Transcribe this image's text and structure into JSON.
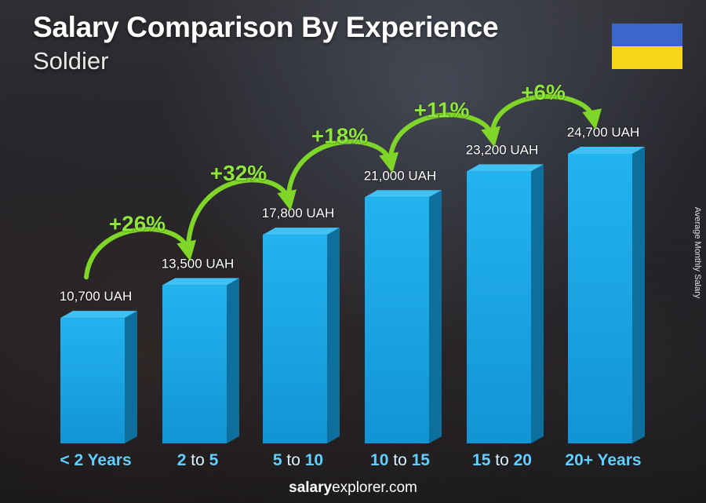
{
  "title": "Salary Comparison By Experience",
  "subtitle": "Soldier",
  "ylabel": "Average Monthly Salary",
  "flag_colors": {
    "top": "#3a67c9",
    "bottom": "#f7d51a"
  },
  "bar_color": "#1aaae8",
  "arrow_color": "#7fd628",
  "footer": {
    "bold": "salary",
    "rest": "explorer.com"
  },
  "chart_data": {
    "type": "bar",
    "categories": [
      {
        "a": "< 2 Years",
        "mid": "",
        "b": ""
      },
      {
        "a": "2",
        "mid": " to ",
        "b": "5"
      },
      {
        "a": "5",
        "mid": " to ",
        "b": "10"
      },
      {
        "a": "10",
        "mid": " to ",
        "b": "15"
      },
      {
        "a": "15",
        "mid": " to ",
        "b": "20"
      },
      {
        "a": "20+ Years",
        "mid": "",
        "b": ""
      }
    ],
    "values": [
      10700,
      13500,
      17800,
      21000,
      23200,
      24700
    ],
    "value_labels": [
      "10,700 UAH",
      "13,500 UAH",
      "17,800 UAH",
      "21,000 UAH",
      "23,200 UAH",
      "24,700 UAH"
    ],
    "changes": [
      "+26%",
      "+32%",
      "+18%",
      "+11%",
      "+6%"
    ],
    "ylabel": "Average Monthly Salary",
    "currency": "UAH"
  }
}
